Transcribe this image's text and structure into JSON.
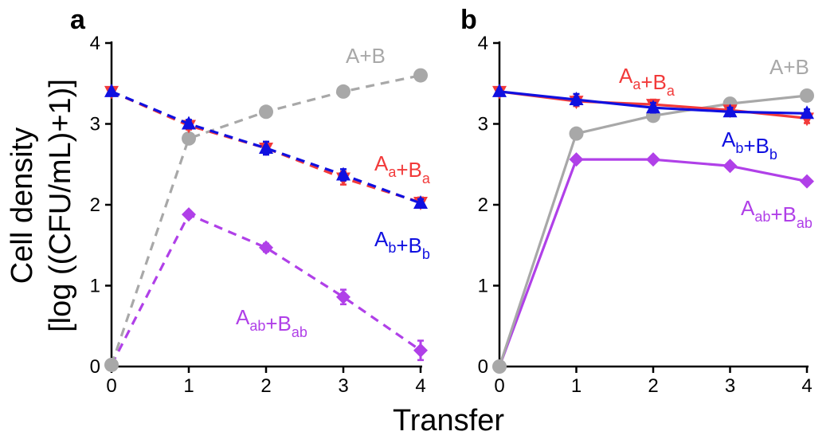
{
  "figure": {
    "ylabel_line1": "Cell density",
    "ylabel_line2": "[log ((CFU/mL)+1)]",
    "xlabel": "Transfer"
  },
  "colors": {
    "gray": "#a8a8a8",
    "red": "#f23a3a",
    "blue": "#1010e0",
    "purple": "#b040e8"
  },
  "chart_data": [
    {
      "panel": "a",
      "type": "line",
      "line_style": "dashed",
      "x": [
        0,
        1,
        2,
        3,
        4
      ],
      "xlim": [
        0,
        4
      ],
      "ylim": [
        0,
        4
      ],
      "xticks": [
        "0",
        "1",
        "2",
        "3",
        "4"
      ],
      "yticks": [
        "0",
        "1",
        "2",
        "3",
        "4"
      ],
      "series": [
        {
          "key": "ab",
          "label_main": [
            "A",
            "+B"
          ],
          "label_sub": [
            "ab",
            "ab"
          ],
          "color": "purple",
          "marker": "diamond",
          "values": [
            0.02,
            1.88,
            1.47,
            0.86,
            0.2
          ],
          "errors": [
            0,
            0.04,
            0.05,
            0.09,
            0.12
          ]
        },
        {
          "key": "both",
          "label_main": [
            "A+B"
          ],
          "label_sub": [],
          "color": "gray",
          "marker": "circle",
          "values": [
            0.02,
            2.82,
            3.15,
            3.4,
            3.6
          ],
          "errors": [
            0,
            0,
            0,
            0,
            0
          ]
        },
        {
          "key": "a",
          "label_main": [
            "A",
            "+B"
          ],
          "label_sub": [
            "a",
            "a"
          ],
          "color": "red",
          "marker": "triangle-down",
          "values": [
            3.4,
            2.98,
            2.7,
            2.33,
            2.03
          ],
          "errors": [
            0,
            0.05,
            0.05,
            0.08,
            0.06
          ]
        },
        {
          "key": "b",
          "label_main": [
            "A",
            "+B"
          ],
          "label_sub": [
            "b",
            "b"
          ],
          "color": "blue",
          "marker": "triangle-up",
          "values": [
            3.4,
            3.0,
            2.7,
            2.37,
            2.02
          ],
          "errors": [
            0,
            0.05,
            0.08,
            0.07,
            0.05
          ]
        }
      ]
    },
    {
      "panel": "b",
      "type": "line",
      "line_style": "solid",
      "x": [
        0,
        1,
        2,
        3,
        4
      ],
      "xlim": [
        0,
        4
      ],
      "ylim": [
        0,
        4
      ],
      "xticks": [
        "0",
        "1",
        "2",
        "3",
        "4"
      ],
      "yticks": [
        "0",
        "1",
        "2",
        "3",
        "4"
      ],
      "series": [
        {
          "key": "ab",
          "label_main": [
            "A",
            "+B"
          ],
          "label_sub": [
            "ab",
            "ab"
          ],
          "color": "purple",
          "marker": "diamond",
          "values": [
            0.0,
            2.56,
            2.56,
            2.48,
            2.29
          ],
          "errors": [
            0,
            0.03,
            0.03,
            0.03,
            0.03
          ]
        },
        {
          "key": "both",
          "label_main": [
            "A+B"
          ],
          "label_sub": [],
          "color": "gray",
          "marker": "circle",
          "values": [
            0.0,
            2.88,
            3.1,
            3.25,
            3.35
          ],
          "errors": [
            0,
            0,
            0,
            0,
            0
          ]
        },
        {
          "key": "a",
          "label_main": [
            "A",
            "+B"
          ],
          "label_sub": [
            "a",
            "a"
          ],
          "color": "red",
          "marker": "triangle-down",
          "values": [
            3.4,
            3.28,
            3.24,
            3.17,
            3.07
          ],
          "errors": [
            0,
            0.06,
            0.06,
            0.05,
            0.06
          ]
        },
        {
          "key": "b",
          "label_main": [
            "A",
            "+B"
          ],
          "label_sub": [
            "b",
            "b"
          ],
          "color": "blue",
          "marker": "triangle-up",
          "values": [
            3.4,
            3.3,
            3.2,
            3.15,
            3.13
          ],
          "errors": [
            0,
            0.07,
            0.06,
            0.05,
            0.05
          ]
        }
      ]
    }
  ]
}
